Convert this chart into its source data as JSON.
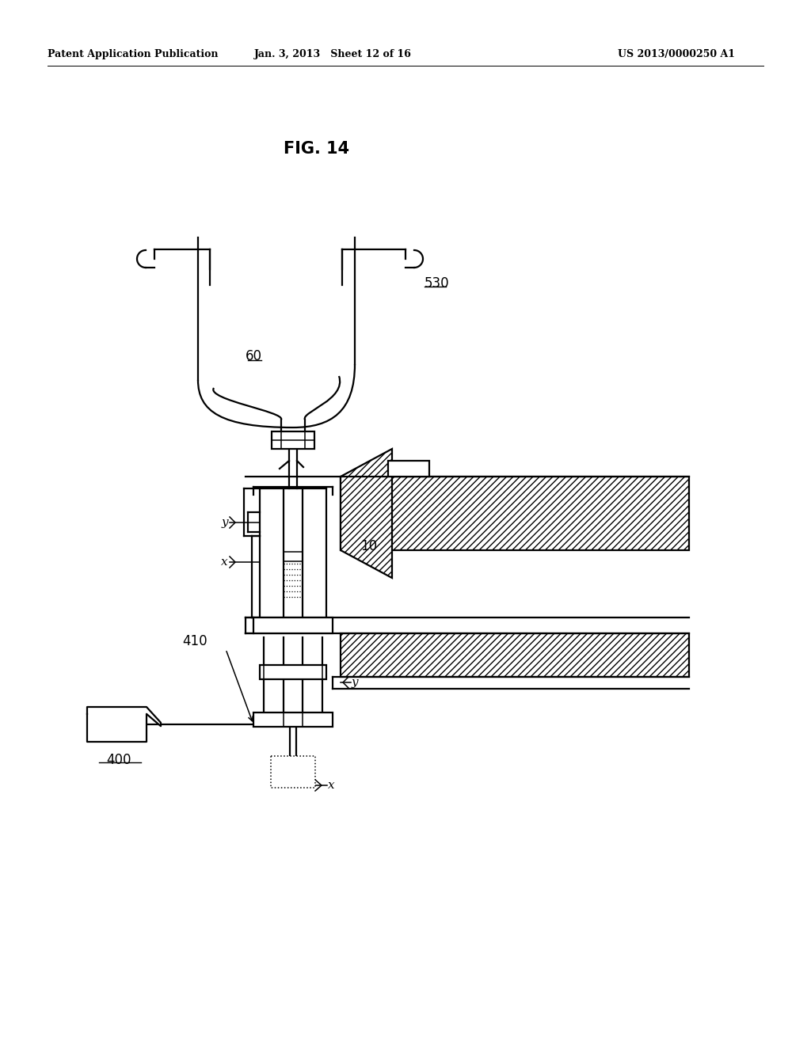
{
  "bg_color": "#ffffff",
  "line_color": "#000000",
  "header_left": "Patent Application Publication",
  "header_center": "Jan. 3, 2013   Sheet 12 of 16",
  "header_right": "US 2013/0000250 A1",
  "fig_title": "FIG. 14"
}
